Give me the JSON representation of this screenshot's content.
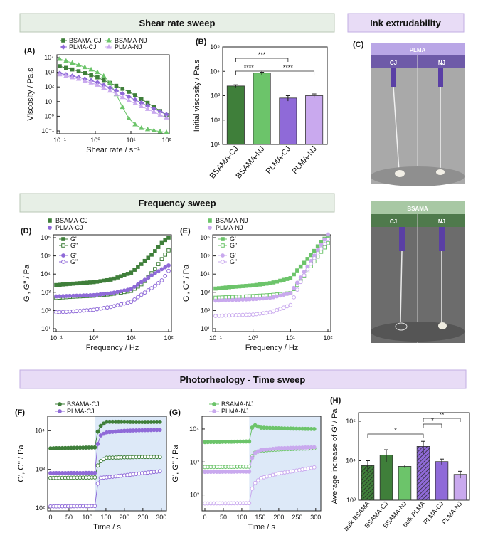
{
  "banners": {
    "shear": "Shear rate sweep",
    "ink": "Ink extrudability",
    "freq": "Frequency sweep",
    "photo": "Photorheology - Time sweep"
  },
  "photo_panel": {
    "label": "(C)",
    "top_header": "PLMA",
    "bottom_header": "BSAMA",
    "left_tag": "CJ",
    "right_tag": "NJ"
  },
  "colors": {
    "BSAMA-CJ": "#3f7f3a",
    "BSAMA-NJ": "#6cc46a",
    "PLMA-CJ": "#8f6ad8",
    "PLMA-NJ": "#c9a9ee",
    "shade": "#dde9f8"
  },
  "chart_data": [
    {
      "panel": "(A)",
      "type": "line",
      "xlabel": "Shear rate / s⁻¹",
      "ylabel": "Viscosity / Pa.s",
      "xscale": "log",
      "yscale": "log",
      "xlim": [
        0.1,
        100
      ],
      "ylim": [
        0.1,
        10000
      ],
      "xticks": [
        "10⁻¹",
        "10⁰",
        "10¹",
        "10²"
      ],
      "yticks": [
        "10⁻¹",
        "10⁰",
        "10¹",
        "10²",
        "10³",
        "10⁴"
      ],
      "legend": "top",
      "series": [
        {
          "name": "BSAMA-CJ",
          "color": "#3f7f3a",
          "x": [
            0.1,
            0.3,
            1,
            3,
            10,
            30,
            100
          ],
          "y": [
            2600,
            1300,
            520,
            160,
            40,
            8,
            1.2
          ]
        },
        {
          "name": "BSAMA-NJ",
          "color": "#6cc46a",
          "x": [
            0.1,
            0.3,
            1,
            2,
            3,
            5,
            10,
            20,
            50,
            100
          ],
          "y": [
            8000,
            3500,
            1200,
            450,
            120,
            8,
            0.4,
            0.15,
            0.1,
            0.08
          ]
        },
        {
          "name": "PLMA-CJ",
          "color": "#8f6ad8",
          "x": [
            0.1,
            0.3,
            1,
            3,
            10,
            30,
            100
          ],
          "y": [
            850,
            480,
            230,
            75,
            18,
            5,
            1.3
          ]
        },
        {
          "name": "PLMA-NJ",
          "color": "#c9a9ee",
          "x": [
            0.1,
            0.3,
            1,
            3,
            10,
            30,
            100
          ],
          "y": [
            700,
            380,
            160,
            45,
            10,
            3,
            0.8
          ]
        }
      ]
    },
    {
      "panel": "(B)",
      "type": "bar",
      "ylabel": "Initial viscosity / Pa.s",
      "yscale": "log",
      "ylim": [
        10,
        100000
      ],
      "yticks": [
        "10¹",
        "10²",
        "10³",
        "10⁴",
        "10⁵"
      ],
      "categories": [
        "BSAMA-CJ",
        "BSAMA-NJ",
        "PLMA-CJ",
        "PLMA-NJ"
      ],
      "values": [
        2500,
        8500,
        800,
        1000
      ],
      "errors": [
        300,
        700,
        200,
        180
      ],
      "colors": [
        "#3f7f3a",
        "#6cc46a",
        "#8f6ad8",
        "#c9a9ee"
      ],
      "annotations": [
        {
          "from": 0,
          "to": 2,
          "text": "***"
        },
        {
          "from": 0,
          "to": 1,
          "text": "****"
        },
        {
          "from": 1,
          "to": 3,
          "text": "****"
        }
      ]
    },
    {
      "panel": "(D)",
      "type": "scatter",
      "xlabel": "Frequency / Hz",
      "ylabel": "G', G'' / Pa",
      "xscale": "log",
      "yscale": "log",
      "xlim": [
        0.1,
        100
      ],
      "ylim": [
        10,
        1000000
      ],
      "xticks": [
        "10⁻¹",
        "10⁰",
        "10¹",
        "10²"
      ],
      "yticks": [
        "10¹",
        "10²",
        "10³",
        "10⁴",
        "10⁵",
        "10⁶"
      ],
      "legend_headers": [
        "BSAMA-CJ",
        "PLMA-CJ"
      ],
      "legend": [
        "G'",
        "G''",
        "G'",
        "G''"
      ],
      "series": [
        {
          "name": "G'",
          "color": "#3f7f3a",
          "filled": true,
          "x": [
            0.1,
            0.3,
            1,
            3,
            10,
            20,
            40,
            70,
            100
          ],
          "y": [
            2500,
            3000,
            3600,
            5000,
            12000,
            40000,
            150000,
            600000,
            1000000
          ]
        },
        {
          "name": "G''",
          "color": "#3f7f3a",
          "filled": false,
          "x": [
            0.1,
            0.3,
            1,
            3,
            10,
            20,
            40,
            70,
            100
          ],
          "y": [
            500,
            580,
            650,
            800,
            1200,
            3000,
            15000,
            80000,
            200000
          ]
        },
        {
          "name": "G'",
          "color": "#8f6ad8",
          "filled": true,
          "x": [
            0.1,
            0.3,
            1,
            3,
            10,
            20,
            40,
            70,
            100
          ],
          "y": [
            600,
            650,
            700,
            900,
            1500,
            4000,
            10000,
            20000,
            30000
          ]
        },
        {
          "name": "G''",
          "color": "#8f6ad8",
          "filled": false,
          "x": [
            0.1,
            0.3,
            1,
            3,
            10,
            20,
            40,
            70,
            100
          ],
          "y": [
            80,
            90,
            110,
            160,
            300,
            800,
            2000,
            5000,
            15000
          ]
        }
      ]
    },
    {
      "panel": "(E)",
      "type": "scatter",
      "xlabel": "Frequency / Hz",
      "ylabel": "G', G'' / Pa",
      "xscale": "log",
      "yscale": "log",
      "xlim": [
        0.1,
        100
      ],
      "ylim": [
        10,
        1000000
      ],
      "xticks": [
        "10⁻¹",
        "10⁰",
        "10¹",
        "10²"
      ],
      "yticks": [
        "10¹",
        "10²",
        "10³",
        "10⁴",
        "10⁵",
        "10⁶"
      ],
      "legend_headers": [
        "BSAMA-NJ",
        "PLMA-NJ"
      ],
      "legend": [
        "G'",
        "G''",
        "G'",
        "G''"
      ],
      "series": [
        {
          "name": "G'",
          "color": "#6cc46a",
          "filled": true,
          "x": [
            0.1,
            0.3,
            1,
            3,
            10,
            20,
            40,
            70,
            100
          ],
          "y": [
            1600,
            2000,
            2400,
            3200,
            6000,
            30000,
            150000,
            700000,
            1200000
          ]
        },
        {
          "name": "G''",
          "color": "#6cc46a",
          "filled": false,
          "x": [
            0.1,
            0.3,
            1,
            3,
            10,
            20,
            40,
            70,
            100
          ],
          "y": [
            500,
            550,
            620,
            700,
            900,
            5000,
            40000,
            200000,
            500000
          ]
        },
        {
          "name": "G'",
          "color": "#c9a9ee",
          "filled": true,
          "x": [
            0.1,
            0.3,
            1,
            3,
            10,
            20,
            40,
            70,
            100
          ],
          "y": [
            350,
            380,
            420,
            500,
            900,
            8000,
            80000,
            500000,
            1500000
          ]
        },
        {
          "name": "G''",
          "color": "#c9a9ee",
          "filled": false,
          "x": [
            0.1,
            0.3,
            1,
            3,
            10,
            20,
            40,
            70,
            100
          ],
          "y": [
            50,
            55,
            60,
            80,
            200,
            5000,
            60000,
            300000,
            800000
          ]
        }
      ]
    },
    {
      "panel": "(F)",
      "type": "line",
      "xlabel": "Time / s",
      "ylabel": "G', G'' / Pa",
      "yscale": "log",
      "xlim": [
        0,
        310
      ],
      "ylim": [
        100,
        20000
      ],
      "xticks": [
        "0",
        "50",
        "100",
        "150",
        "200",
        "250",
        "300"
      ],
      "yticks": [
        "10²",
        "10³",
        "10⁴"
      ],
      "shade_from": 120,
      "legend": "top",
      "series": [
        {
          "name": "BSAMA-CJ",
          "color": "#3f7f3a",
          "filled": true,
          "x": [
            0,
            120,
            130,
            150,
            200,
            250,
            300
          ],
          "y": [
            3500,
            3700,
            12000,
            17000,
            17000,
            16800,
            17000
          ]
        },
        {
          "name": "",
          "color": "#3f7f3a",
          "filled": false,
          "x": [
            0,
            120,
            130,
            150,
            200,
            250,
            300
          ],
          "y": [
            600,
            620,
            1500,
            2000,
            2050,
            2100,
            2100
          ]
        },
        {
          "name": "PLMA-CJ",
          "color": "#8f6ad8",
          "filled": true,
          "x": [
            0,
            120,
            130,
            150,
            200,
            250,
            300
          ],
          "y": [
            800,
            810,
            7000,
            9000,
            10000,
            10300,
            10500
          ]
        },
        {
          "name": "",
          "color": "#8f6ad8",
          "filled": false,
          "x": [
            0,
            120,
            130,
            150,
            200,
            250,
            300
          ],
          "y": [
            110,
            112,
            600,
            620,
            700,
            800,
            900
          ]
        }
      ]
    },
    {
      "panel": "(G)",
      "type": "line",
      "xlabel": "Time / s",
      "ylabel": "G', G'' / Pa",
      "yscale": "log",
      "xlim": [
        0,
        310
      ],
      "ylim": [
        40,
        20000
      ],
      "xticks": [
        "0",
        "50",
        "100",
        "150",
        "200",
        "250",
        "300"
      ],
      "yticks": [
        "10²",
        "10³",
        "10⁴"
      ],
      "shade_from": 120,
      "legend": "top",
      "series": [
        {
          "name": "BSAMA-NJ",
          "color": "#6cc46a",
          "filled": true,
          "x": [
            0,
            120,
            130,
            150,
            200,
            250,
            300
          ],
          "y": [
            4000,
            4200,
            14000,
            11000,
            10500,
            10200,
            10000
          ]
        },
        {
          "name": "",
          "color": "#6cc46a",
          "filled": false,
          "x": [
            0,
            120,
            130,
            150,
            200,
            250,
            300
          ],
          "y": [
            700,
            720,
            1800,
            2200,
            2400,
            2500,
            2600
          ]
        },
        {
          "name": "PLMA-NJ",
          "color": "#c9a9ee",
          "filled": true,
          "x": [
            0,
            120,
            130,
            150,
            200,
            250,
            300
          ],
          "y": [
            500,
            510,
            1700,
            2300,
            2600,
            2700,
            2800
          ]
        },
        {
          "name": "",
          "color": "#c9a9ee",
          "filled": false,
          "x": [
            0,
            120,
            130,
            150,
            200,
            250,
            300
          ],
          "y": [
            55,
            56,
            200,
            320,
            450,
            550,
            700
          ]
        }
      ]
    },
    {
      "panel": "(H)",
      "type": "bar",
      "ylabel": "Average increase of G' / Pa",
      "yscale": "log",
      "ylim": [
        1000,
        100000
      ],
      "yticks": [
        "10³",
        "10⁴",
        "10⁵"
      ],
      "categories": [
        "bulk BSAMA",
        "BSAMA-CJ",
        "BSAMA-NJ",
        "bulk PLMA",
        "PLMA-CJ",
        "PLMA-NJ"
      ],
      "values": [
        7500,
        14000,
        7200,
        23000,
        9500,
        4500
      ],
      "errors": [
        2500,
        5000,
        600,
        8000,
        1500,
        900
      ],
      "colors": [
        "#3f7f3a",
        "#3f7f3a",
        "#6cc46a",
        "#8f6ad8",
        "#8f6ad8",
        "#c9a9ee"
      ],
      "hatched": [
        true,
        false,
        false,
        true,
        false,
        false
      ],
      "annotations": [
        {
          "from": 0,
          "to": 3,
          "text": "*"
        },
        {
          "from": 3,
          "to": 4,
          "text": "*"
        },
        {
          "from": 3,
          "to": 5,
          "text": "**"
        }
      ]
    }
  ]
}
